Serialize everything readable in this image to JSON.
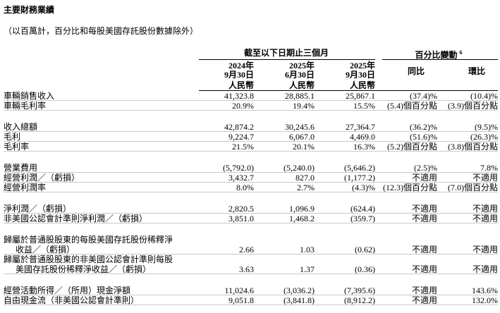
{
  "title": "主要財務業績",
  "subtitle": "（以百萬計，百分比和每股美國存託股份數據除外）",
  "header": {
    "period_group": "截至以下日期止三個月",
    "change_group": "百分比變動",
    "change_note": "6",
    "dates": [
      [
        "2024年",
        "9月30日"
      ],
      [
        "2025年",
        "6月30日"
      ],
      [
        "2025年",
        "9月30日"
      ]
    ],
    "currency": [
      "人民幣",
      "人民幣",
      "人民幣"
    ],
    "changes": [
      "同比",
      "環比"
    ]
  },
  "groups": [
    {
      "rows": [
        {
          "label": [
            "車輛銷售收入"
          ],
          "values": [
            "41,323.8",
            "28,885.1",
            "25,867.1",
            "(37.4)%",
            "(10.4)%"
          ]
        },
        {
          "label": [
            "車輛毛利率"
          ],
          "values": [
            "20.9%",
            "19.4%",
            "15.5%",
            "(5.4)個百分點",
            "(3.9)個百分點"
          ]
        }
      ]
    },
    {
      "rows": [
        {
          "label": [
            "收入總額"
          ],
          "values": [
            "42,874.2",
            "30,245.6",
            "27,364.7",
            "(36.2)%",
            "(9.5)%"
          ]
        },
        {
          "label": [
            "毛利"
          ],
          "values": [
            "9,224.7",
            "6,067.0",
            "4,469.0",
            "(51.6)%",
            "(26.3)%"
          ]
        },
        {
          "label": [
            "毛利率"
          ],
          "values": [
            "21.5%",
            "20.1%",
            "16.3%",
            "(5.2)個百分點",
            "(3.8)個百分點"
          ]
        }
      ]
    },
    {
      "rows": [
        {
          "label": [
            "營業費用"
          ],
          "values": [
            "(5,792.0)",
            "(5,240.0)",
            "(5,646.2)",
            "(2.5)%",
            "7.8%"
          ]
        },
        {
          "label": [
            "經營利潤／（虧損）"
          ],
          "values": [
            "3,432.7",
            "827.0",
            "(1,177.2)",
            "不適用",
            "不適用"
          ]
        },
        {
          "label": [
            "經營利潤率"
          ],
          "values": [
            "8.0%",
            "2.7%",
            "(4.3)%",
            "(12.3)個百分點",
            "(7.0)個百分點"
          ]
        }
      ]
    },
    {
      "rows": [
        {
          "label": [
            "淨利潤／（虧損）"
          ],
          "values": [
            "2,820.5",
            "1,096.9",
            "(624.4)",
            "不適用",
            "不適用"
          ]
        },
        {
          "label": [
            "非美國公認會計準則淨利潤／（虧損）"
          ],
          "values": [
            "3,851.0",
            "1,468.2",
            "(359.7)",
            "不適用",
            "不適用"
          ]
        }
      ]
    },
    {
      "rows": [
        {
          "label": [
            "歸屬於普通股股東的每股美國存託股份稀釋淨",
            "收益／（虧損）"
          ],
          "values": [
            "2.66",
            "1.03",
            "(0.62)",
            "不適用",
            "不適用"
          ]
        },
        {
          "label": [
            "歸屬於普通股股東的非美國公認會計準則每股",
            "美國存託股份稀釋淨收益／（虧損）"
          ],
          "values": [
            "3.63",
            "1.37",
            "(0.36)",
            "不適用",
            "不適用"
          ]
        }
      ]
    },
    {
      "rows": [
        {
          "label": [
            "經營活動所得／（所用）現金淨額"
          ],
          "values": [
            "11,024.6",
            "(3,036.2)",
            "(7,395.6)",
            "不適用",
            "143.6%"
          ]
        },
        {
          "label": [
            "自由現金流（非美國公認會計準則）"
          ],
          "values": [
            "9,051.8",
            "(3,841.8)",
            "(8,912.2)",
            "不適用",
            "132.0%"
          ]
        }
      ]
    }
  ]
}
